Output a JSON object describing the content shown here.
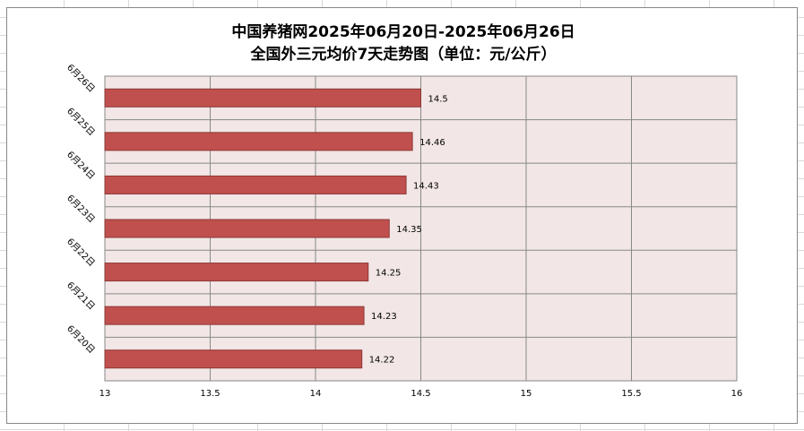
{
  "chart_data": {
    "type": "bar",
    "orientation": "horizontal",
    "title": "中国养猪网2025年06月20日-2025年06月26日",
    "subtitle": "全国外三元均价7天走势图（单位：元/公斤）",
    "categories": [
      "6月26日",
      "6月25日",
      "6月24日",
      "6月23日",
      "6月22日",
      "6月21日",
      "6月20日"
    ],
    "values": [
      14.5,
      14.46,
      14.43,
      14.35,
      14.25,
      14.23,
      14.22
    ],
    "color": "#c0504d",
    "xlim": [
      13,
      16
    ],
    "xticks": [
      13,
      13.5,
      14,
      14.5,
      15,
      15.5,
      16
    ],
    "grid": true
  }
}
